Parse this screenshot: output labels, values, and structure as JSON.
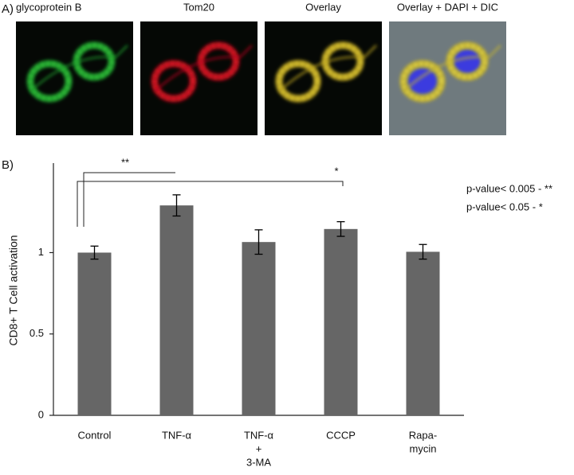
{
  "panel_a": {
    "label": "A)",
    "titles": [
      "glycoprotein B",
      "Tom20",
      "Overlay",
      "Overlay + DAPI + DIC"
    ]
  },
  "chart_data": {
    "type": "bar",
    "panel_label": "B)",
    "y_label": "CD8+ T Cell activation",
    "categories": [
      [
        "Control"
      ],
      [
        "TNF-α"
      ],
      [
        "TNF-α",
        "+",
        "3-MA"
      ],
      [
        "CCCP"
      ],
      [
        "Rapa-",
        "mycin"
      ]
    ],
    "values": [
      1.0,
      1.29,
      1.065,
      1.145,
      1.005
    ],
    "errors": [
      0.04,
      0.065,
      0.075,
      0.045,
      0.045
    ],
    "color": "#666666",
    "ylim": [
      0,
      1.55
    ],
    "yticks": [
      0,
      0.5,
      1
    ],
    "significance_labels": [
      "**",
      "*"
    ],
    "annotations": [
      "p-value< 0.005 - **",
      "p-value< 0.05 - *"
    ]
  }
}
